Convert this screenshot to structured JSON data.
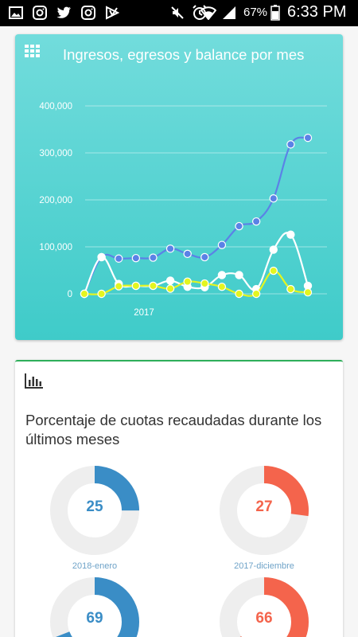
{
  "status_bar": {
    "battery_percent": "67%",
    "time": "6:33 PM",
    "left_icons": [
      "image-icon",
      "instagram-icon",
      "twitter-icon",
      "instagram-icon",
      "download-icon"
    ],
    "right_icons": [
      "mute-icon",
      "alarm-icon",
      "wifi-icon",
      "signal-icon",
      "battery-icon"
    ]
  },
  "income_card": {
    "title": "Ingresos, egresos y balance por mes",
    "icon": "grid-icon"
  },
  "chart_data": {
    "type": "line",
    "title": "Ingresos, egresos y balance por mes",
    "x_tick_labels": [
      "2017"
    ],
    "y_tick_labels": [
      "0",
      "100,000",
      "200,000",
      "300,000",
      "400,000"
    ],
    "ylim": [
      0,
      400000
    ],
    "grid": true,
    "series": [
      {
        "color": "#5b82e6",
        "values": [
          0,
          78000,
          75000,
          76000,
          77000,
          96000,
          85000,
          78000,
          104000,
          144000,
          154000,
          203000,
          318000,
          332000
        ]
      },
      {
        "color": "#ffffff",
        "values": [
          0,
          78000,
          21000,
          17000,
          17000,
          28000,
          15000,
          14000,
          40000,
          40000,
          10000,
          94000,
          126000,
          17000
        ]
      },
      {
        "color": "#e3f520",
        "values": [
          0,
          0,
          16000,
          17000,
          17000,
          11000,
          26000,
          22000,
          15000,
          0,
          0,
          49000,
          10000,
          3000
        ]
      }
    ]
  },
  "cuotas_card": {
    "title": "Porcentaje de cuotas recaudadas durante los últimos meses",
    "icon": "bar-chart-icon",
    "donuts": [
      {
        "value": "25",
        "label": "2018-enero",
        "color": "#3a8dc6"
      },
      {
        "value": "27",
        "label": "2017-diciembre",
        "color": "#f4644c"
      },
      {
        "value": "69",
        "label": "",
        "color": "#3a8dc6"
      },
      {
        "value": "66",
        "label": "",
        "color": "#f4644c"
      }
    ]
  }
}
